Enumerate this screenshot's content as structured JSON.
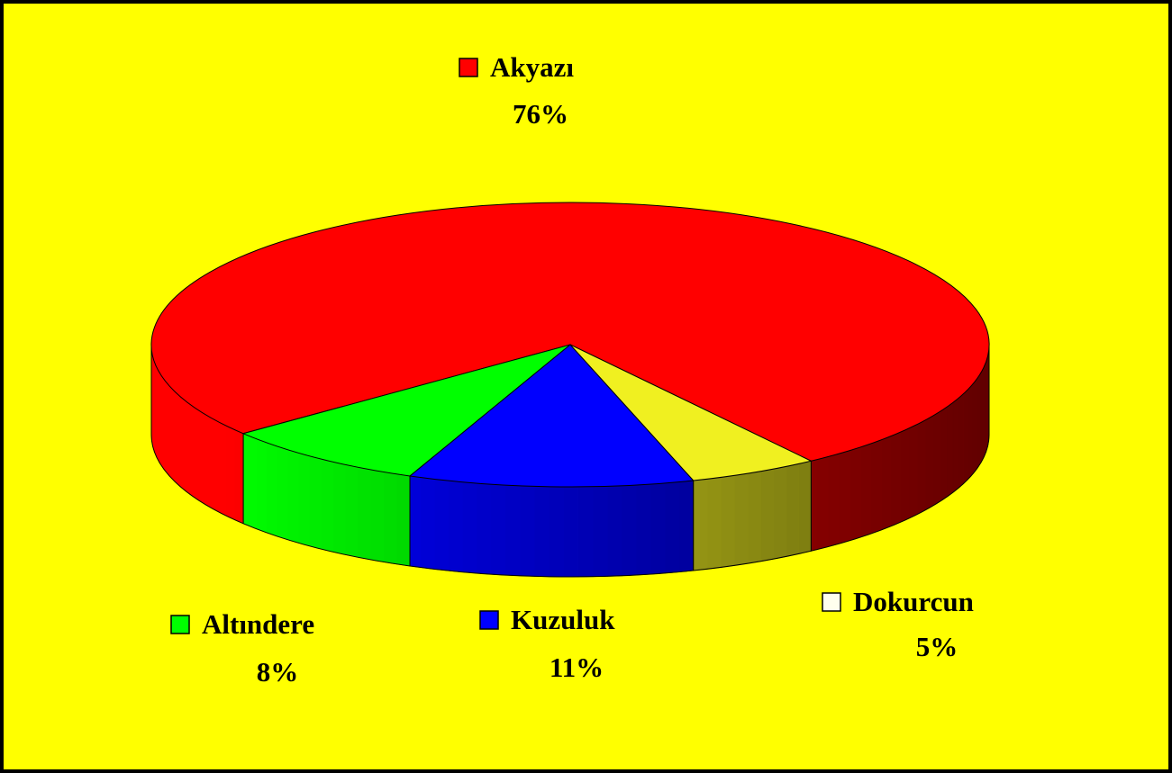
{
  "chart_data": {
    "type": "pie",
    "categories": [
      "Akyazı",
      "Altındere",
      "Kuzuluk",
      "Dokurcun"
    ],
    "values": [
      76,
      8,
      11,
      5
    ],
    "value_labels": [
      "76%",
      "8%",
      "11%",
      "5%"
    ],
    "colors": [
      "#ff0000",
      "#00ff00",
      "#0000ff",
      "#f0f020"
    ]
  }
}
